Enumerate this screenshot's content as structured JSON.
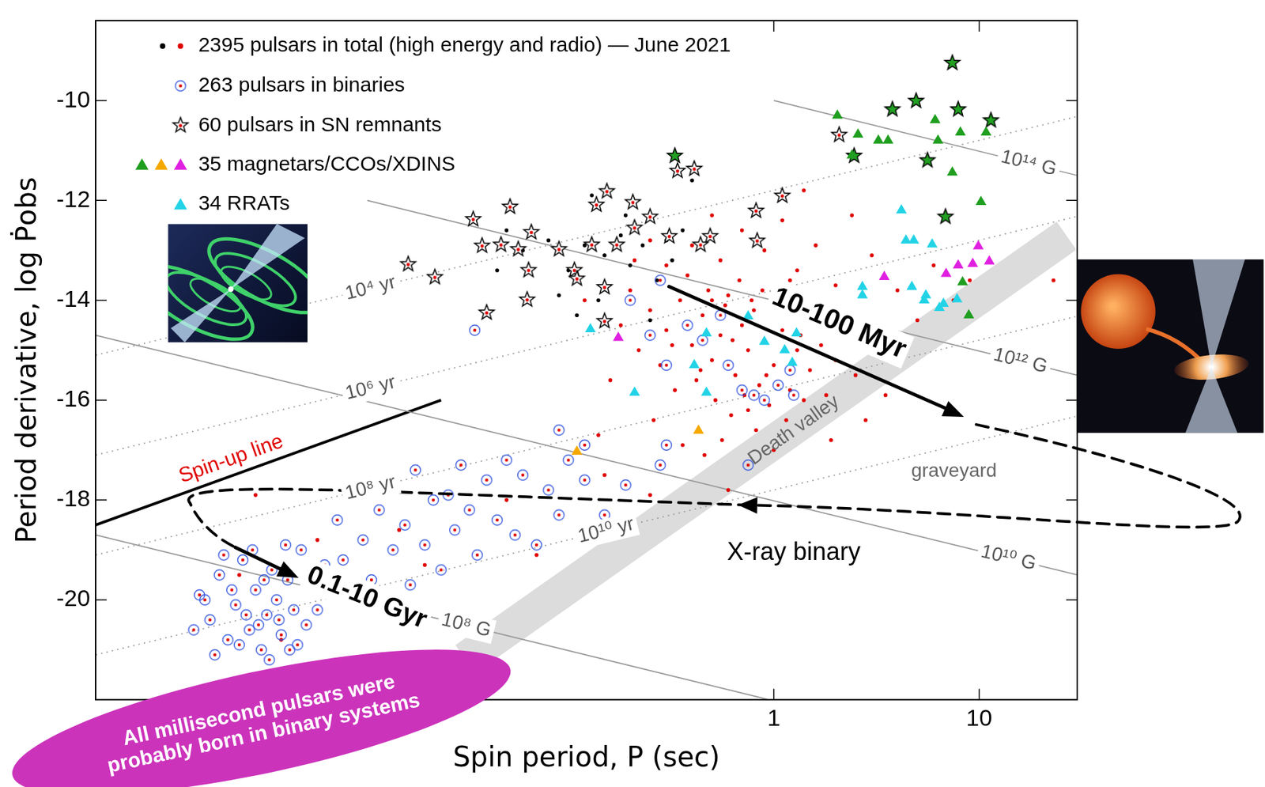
{
  "chart_data": {
    "type": "scatter",
    "x_label": "Spin period, P (sec)",
    "y_label": "Period derivative, log Ṗobs",
    "log": "x",
    "xlim": [
      0.0005,
      30
    ],
    "xticks": [
      1,
      10
    ],
    "ylim": [
      -22,
      -8.4
    ],
    "yticks": [
      -20,
      -18,
      -16,
      -14,
      -12,
      -10
    ],
    "grid": false,
    "legend": "upper left",
    "series": [
      {
        "name": "2395 pulsars in total (high energy and radio) — June 2021",
        "type": "scatter",
        "marker": "dot",
        "x": [
          0.06,
          0.08,
          0.1,
          0.12,
          0.15,
          0.18,
          0.2,
          0.23,
          0.27,
          0.3,
          0.05,
          0.09,
          0.14,
          0.32,
          0.36,
          0.4,
          0.045,
          0.11,
          0.19,
          0.25,
          0.13,
          0.25,
          0.3,
          0.35,
          0.4,
          0.45,
          0.5,
          0.55,
          0.6,
          0.65,
          0.7,
          0.75,
          0.8,
          0.85,
          0.9,
          1.0,
          1.1,
          1.2,
          1.3,
          1.5,
          1.7,
          2.0,
          0.28,
          0.33,
          0.38,
          0.42,
          0.48,
          0.52,
          0.58,
          0.62,
          0.68,
          0.72,
          0.78,
          0.82,
          0.88,
          0.95,
          1.05,
          1.15,
          1.25,
          1.4,
          1.6,
          1.8,
          2.2,
          2.5,
          3.0,
          0.22,
          0.2,
          0.18,
          0.16,
          0.14,
          0.12,
          0.26,
          0.36,
          0.46,
          0.56,
          1.0,
          0.3,
          0.4,
          0.55,
          0.7,
          0.9,
          1.1,
          1.3,
          1.6,
          2.0,
          2.4,
          3.0,
          4.0,
          5.0,
          6.0,
          7.5,
          9.0,
          3.5,
          2.8,
          1.9,
          0.6,
          0.8,
          1.4,
          0.5,
          0.25,
          0.21,
          0.0025,
          0.004,
          0.006,
          0.015,
          0.02,
          0.05,
          0.07,
          0.009,
          0.003,
          0.15,
          0.25,
          23,
          0.32,
          0.44,
          0.63,
          0.92,
          1.35,
          0.5,
          0.75,
          1.2
        ],
        "values": [
          -13.0,
          -12.8,
          -13.4,
          -12.9,
          -13.1,
          -12.7,
          -13.3,
          -12.9,
          -13.6,
          -12.8,
          -12.6,
          -13.9,
          -14.0,
          -13.2,
          -12.6,
          -11.6,
          -13.4,
          -14.3,
          -12.3,
          -14.4,
          -11.9,
          -14.2,
          -14.6,
          -14.0,
          -14.9,
          -14.3,
          -15.2,
          -14.7,
          -13.9,
          -15.5,
          -14.5,
          -15.0,
          -14.2,
          -15.7,
          -14.8,
          -15.3,
          -14.6,
          -15.8,
          -15.0,
          -15.4,
          -14.9,
          -15.2,
          -15.3,
          -15.8,
          -13.5,
          -15.6,
          -13.8,
          -16.0,
          -14.1,
          -16.3,
          -13.6,
          -15.9,
          -14.0,
          -16.6,
          -13.8,
          -16.1,
          -14.1,
          -16.4,
          -14.3,
          -16.0,
          -14.4,
          -15.9,
          -14.6,
          -15.5,
          -14.9,
          -15.0,
          -13.8,
          -14.5,
          -15.6,
          -16.7,
          -14.0,
          -16.4,
          -16.9,
          -17.1,
          -16.8,
          -17.0,
          -13.3,
          -12.9,
          -13.2,
          -12.6,
          -13.0,
          -12.4,
          -13.4,
          -12.9,
          -13.7,
          -12.3,
          -13.1,
          -13.8,
          -14.4,
          -13.3,
          -14.0,
          -13.6,
          -15.9,
          -16.4,
          -16.8,
          -17.8,
          -12.2,
          -11.8,
          -12.3,
          -12.8,
          -13.2,
          -19.5,
          -20.8,
          -18.8,
          -18.6,
          -19.3,
          -18.0,
          -19.1,
          -20.1,
          -17.9,
          -17.5,
          -17.9,
          -13.6,
          -14.9,
          -15.4,
          -14.8,
          -15.5,
          -14.7,
          -14.0,
          -16.2,
          -13.6
        ],
        "colors": [
          "#000000",
          "#000000",
          "#000000",
          "#000000",
          "#000000",
          "#000000",
          "#000000",
          "#000000",
          "#000000",
          "#000000",
          "#000000",
          "#000000",
          "#000000",
          "#000000",
          "#000000",
          "#000000",
          "#000000",
          "#000000",
          "#000000",
          "#000000",
          "#000000",
          "#e00000",
          "#e00000",
          "#e00000",
          "#e00000",
          "#e00000",
          "#e00000",
          "#e00000",
          "#e00000",
          "#e00000",
          "#e00000",
          "#e00000",
          "#e00000",
          "#e00000",
          "#e00000",
          "#e00000",
          "#e00000",
          "#e00000",
          "#e00000",
          "#e00000",
          "#e00000",
          "#e00000",
          "#e00000",
          "#e00000",
          "#e00000",
          "#e00000",
          "#e00000",
          "#e00000",
          "#e00000",
          "#e00000",
          "#e00000",
          "#e00000",
          "#e00000",
          "#e00000",
          "#e00000",
          "#e00000",
          "#e00000",
          "#e00000",
          "#e00000",
          "#e00000",
          "#e00000",
          "#e00000",
          "#e00000",
          "#e00000",
          "#e00000",
          "#e00000",
          "#e00000",
          "#e00000",
          "#e00000",
          "#e00000",
          "#e00000",
          "#e00000",
          "#e00000",
          "#e00000",
          "#e00000",
          "#e00000",
          "#e00000",
          "#e00000",
          "#e00000",
          "#e00000",
          "#e00000",
          "#e00000",
          "#e00000",
          "#e00000",
          "#e00000",
          "#e00000",
          "#e00000",
          "#e00000",
          "#e00000",
          "#e00000",
          "#e00000",
          "#e00000",
          "#e00000",
          "#e00000",
          "#e00000",
          "#e00000",
          "#e00000",
          "#e00000",
          "#e00000",
          "#e00000",
          "#e00000",
          "#e00000",
          "#e00000",
          "#e00000",
          "#e00000",
          "#e00000",
          "#e00000",
          "#e00000",
          "#e00000",
          "#e00000",
          "#e00000",
          "#e00000",
          "#e00000",
          "#e00000",
          "#e00000",
          "#e00000",
          "#e00000",
          "#e00000",
          "#e00000",
          "#e00000",
          "#e00000"
        ]
      },
      {
        "name": "263 pulsars in binaries",
        "type": "scatter",
        "marker": "ringed",
        "color": "#3355dd",
        "x": [
          0.0016,
          0.0018,
          0.002,
          0.0022,
          0.0024,
          0.0026,
          0.0028,
          0.003,
          0.0032,
          0.0034,
          0.0036,
          0.0038,
          0.004,
          0.0043,
          0.0046,
          0.005,
          0.0053,
          0.0057,
          0.0019,
          0.0025,
          0.0029,
          0.0035,
          0.0042,
          0.0048,
          0.0017,
          0.0021,
          0.0027,
          0.0033,
          0.0039,
          0.006,
          0.0065,
          0.0031,
          0.0023,
          0.0044,
          0.0015,
          0.0075,
          0.008,
          0.009,
          0.01,
          0.011,
          0.012,
          0.013,
          0.014,
          0.016,
          0.018,
          0.02,
          0.022,
          0.024,
          0.026,
          0.028,
          0.03,
          0.033,
          0.036,
          0.04,
          0.045,
          0.05,
          0.055,
          0.06,
          0.07,
          0.08,
          0.09,
          0.1,
          0.12,
          0.15,
          0.19,
          0.28,
          0.12,
          0.09,
          0.017,
          0.0085,
          0.25,
          0.3,
          0.38,
          0.45,
          0.6,
          0.8,
          0.9,
          1.05,
          1.2,
          1.25,
          0.7,
          0.28,
          0.2,
          0.035,
          0.3,
          0.75,
          0.55
        ],
        "values": [
          -19.9,
          -20.4,
          -19.5,
          -20.8,
          -20.1,
          -19.2,
          -20.6,
          -19.8,
          -21.0,
          -20.3,
          -19.4,
          -20.0,
          -20.7,
          -19.6,
          -20.2,
          -19.0,
          -20.5,
          -19.7,
          -21.1,
          -20.9,
          -19.0,
          -21.2,
          -18.9,
          -20.9,
          -20.0,
          -19.1,
          -20.3,
          -19.6,
          -20.4,
          -20.2,
          -19.3,
          -20.5,
          -19.8,
          -21.0,
          -20.6,
          -18.4,
          -19.2,
          -17.8,
          -18.8,
          -19.6,
          -18.2,
          -17.6,
          -19.0,
          -18.5,
          -17.4,
          -18.9,
          -18.0,
          -19.4,
          -17.9,
          -18.6,
          -17.3,
          -18.2,
          -19.1,
          -17.6,
          -18.4,
          -17.2,
          -18.7,
          -17.5,
          -18.9,
          -17.8,
          -18.3,
          -17.2,
          -17.6,
          -18.3,
          -17.7,
          -17.3,
          -16.9,
          -16.6,
          -19.7,
          -17.9,
          -14.7,
          -15.3,
          -14.5,
          -14.8,
          -15.3,
          -15.9,
          -16.0,
          -15.7,
          -15.4,
          -15.9,
          -15.8,
          -13.6,
          -14.0,
          -14.6,
          -16.9,
          -17.3,
          -14.3
        ]
      },
      {
        "name": "60 pulsars in SN remnants",
        "type": "scatter",
        "marker": "star",
        "x": [
          0.0166,
          0.0224,
          0.0344,
          0.04,
          0.038,
          0.047,
          0.052,
          0.057,
          0.064,
          0.066,
          0.063,
          0.09,
          0.107,
          0.13,
          0.137,
          0.154,
          0.172,
          0.206,
          0.25,
          0.31,
          0.34,
          0.41,
          0.49,
          0.82,
          0.83,
          1.1,
          0.11,
          0.15,
          0.15,
          0.44,
          0.21,
          2.08,
          0.33,
          7.4,
          3.78,
          4.93,
          7.9,
          11.4,
          2.46,
          5.6,
          6.85
        ],
        "values": [
          -13.27,
          -13.53,
          -12.37,
          -14.24,
          -12.9,
          -12.88,
          -12.12,
          -12.97,
          -13.39,
          -12.63,
          -13.98,
          -12.97,
          -13.39,
          -12.88,
          -12.08,
          -11.81,
          -12.88,
          -12.03,
          -12.32,
          -12.71,
          -11.4,
          -11.36,
          -12.71,
          -12.2,
          -12.8,
          -11.9,
          -13.56,
          -14.41,
          -13.73,
          -12.88,
          -12.54,
          -10.68,
          -11.1,
          -9.24,
          -10.17,
          -10.0,
          -10.17,
          -10.39,
          -11.1,
          -11.19,
          -12.32
        ],
        "colors": [
          "#ffffff",
          "#ffffff",
          "#ffffff",
          "#ffffff",
          "#ffffff",
          "#ffffff",
          "#ffffff",
          "#ffffff",
          "#ffffff",
          "#ffffff",
          "#ffffff",
          "#ffffff",
          "#ffffff",
          "#ffffff",
          "#ffffff",
          "#ffffff",
          "#ffffff",
          "#ffffff",
          "#ffffff",
          "#ffffff",
          "#ffffff",
          "#ffffff",
          "#ffffff",
          "#ffffff",
          "#ffffff",
          "#ffffff",
          "#ffffff",
          "#ffffff",
          "#ffffff",
          "#ffffff",
          "#ffffff",
          "#ffffff",
          "#22a022",
          "#22a022",
          "#22a022",
          "#22a022",
          "#22a022",
          "#22a022",
          "#22a022",
          "#22a022",
          "#22a022"
        ]
      },
      {
        "name": "35 magnetars/CCOs/XDINS",
        "type": "scatter",
        "marker": "triangle",
        "x": [
          2.04,
          2.57,
          3.23,
          3.6,
          2.4,
          6.1,
          8.1,
          10.8,
          6.3,
          7.4,
          10.2,
          8.3,
          8.9,
          0.11,
          0.43,
          3.45,
          6.9,
          7.9,
          9.9,
          9.3,
          11.2,
          0.175
        ],
        "values": [
          -10.3,
          -10.68,
          -10.8,
          -10.8,
          -11.1,
          -10.39,
          -10.64,
          -10.64,
          -10.8,
          -11.44,
          -12.03,
          -13.64,
          -14.3,
          -17.03,
          -16.61,
          -13.53,
          -13.47,
          -13.3,
          -12.92,
          -13.27,
          -13.22,
          -14.75
        ],
        "colors": [
          "#1f9e1f",
          "#1f9e1f",
          "#1f9e1f",
          "#1f9e1f",
          "#1f9e1f",
          "#1f9e1f",
          "#1f9e1f",
          "#1f9e1f",
          "#1f9e1f",
          "#1f9e1f",
          "#1f9e1f",
          "#1f9e1f",
          "#1f9e1f",
          "#f5a800",
          "#f5a800",
          "#e020e0",
          "#e020e0",
          "#e020e0",
          "#e020e0",
          "#e020e0",
          "#e020e0",
          "#e020e0"
        ]
      },
      {
        "name": "34 RRATs",
        "type": "scatter",
        "marker": "triangle",
        "color": "#22d3e6",
        "x": [
          4.18,
          4.4,
          4.8,
          5.9,
          2.7,
          4.7,
          5.5,
          6.4,
          6.7,
          7.8,
          5.4,
          0.128,
          0.47,
          0.75,
          1.13,
          1.29,
          0.9,
          1.23,
          0.41,
          0.21,
          0.47,
          2.7
        ],
        "values": [
          -12.2,
          -12.8,
          -12.8,
          -12.88,
          -13.9,
          -13.73,
          -13.9,
          -14.15,
          -14.07,
          -13.98,
          -14.0,
          -14.58,
          -14.66,
          -14.32,
          -15.0,
          -14.66,
          -14.83,
          -15.25,
          -15.3,
          -15.85,
          -15.85,
          -13.73
        ]
      }
    ],
    "lines": [
      {
        "name": "10⁴ yr",
        "type": "line",
        "line_style": "dotted",
        "color": "#999999",
        "x": [
          0.0005,
          30
        ],
        "values": [
          -15.1,
          -10.32
        ]
      },
      {
        "name": "10⁶ yr",
        "type": "line",
        "line_style": "dotted",
        "color": "#999999",
        "x": [
          0.0005,
          30
        ],
        "values": [
          -17.1,
          -12.32
        ]
      },
      {
        "name": "10⁸ yr",
        "type": "line",
        "line_style": "dotted",
        "color": "#999999",
        "x": [
          0.0005,
          30
        ],
        "values": [
          -19.1,
          -14.32
        ]
      },
      {
        "name": "10¹⁰ yr",
        "type": "line",
        "line_style": "dotted",
        "color": "#999999",
        "x": [
          0.0005,
          30
        ],
        "values": [
          -21.1,
          -16.32
        ]
      },
      {
        "name": "10¹⁴ G",
        "type": "line",
        "line_style": "solid",
        "color": "#999999",
        "x": [
          1,
          30
        ],
        "values": [
          -10.0,
          -11.5
        ]
      },
      {
        "name": "10¹² G",
        "type": "line",
        "line_style": "solid",
        "color": "#999999",
        "x": [
          0.0105,
          30
        ],
        "values": [
          -12.0,
          -15.5
        ]
      },
      {
        "name": "10¹⁰ G",
        "type": "line",
        "line_style": "solid",
        "color": "#999999",
        "x": [
          0.0005,
          30
        ],
        "values": [
          -14.7,
          -19.5
        ]
      },
      {
        "name": "10⁸ G",
        "type": "line",
        "line_style": "solid",
        "color": "#999999",
        "x": [
          0.0005,
          0.95
        ],
        "values": [
          -18.7,
          -22.0
        ]
      },
      {
        "type": "line",
        "line_style": "solid",
        "color": "#000000",
        "x": [
          0.0005,
          0.024
        ],
        "values": [
          -18.5,
          -16.0
        ]
      }
    ],
    "annotations": [
      {
        "text": "Spin-up line",
        "color": "#e00000"
      },
      {
        "text": "10-100 Myr",
        "color": "#000000"
      },
      {
        "text": "0.1-10 Gyr",
        "color": "#000000"
      },
      {
        "text": "X-ray binary",
        "color": "#000000"
      },
      {
        "text": "Death valley",
        "color": "#666666"
      },
      {
        "text": "graveyard",
        "color": "#666666"
      },
      {
        "text": "All millisecond pulsars were probably born in binary systems",
        "color": "#cc33bb"
      }
    ]
  }
}
